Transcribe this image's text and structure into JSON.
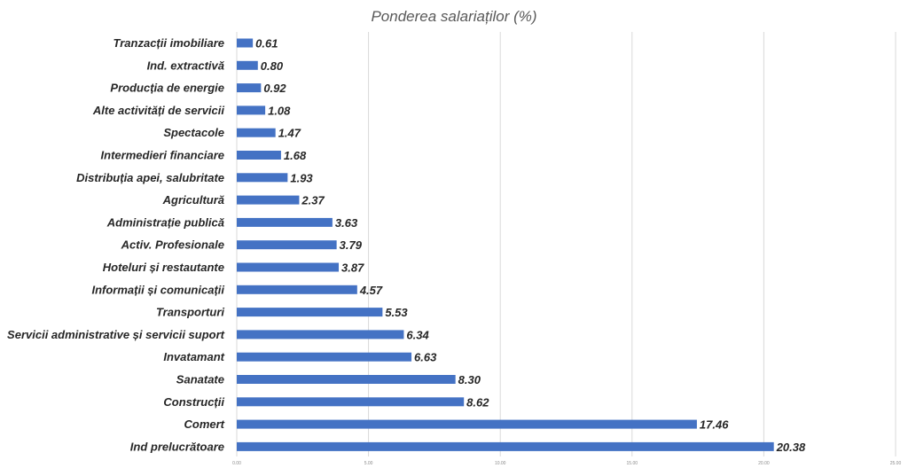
{
  "chart_data": {
    "type": "bar",
    "orientation": "horizontal",
    "title": "Ponderea salariaților (%)",
    "xlabel": "",
    "ylabel": "",
    "categories": [
      "Tranzacții imobiliare",
      "Ind. extractivă",
      "Producția de energie",
      "Alte activități de servicii",
      "Spectacole",
      "Intermedieri financiare",
      "Distribuția apei, salubritate",
      "Agricultură",
      "Administrație publică",
      "Activ. Profesionale",
      "Hoteluri și restautante",
      "Informații și comunicații",
      "Transporturi",
      "Servicii administrative și servicii suport",
      "Invatamant",
      "Sanatate",
      "Construcții",
      "Comert",
      "Ind prelucrătoare"
    ],
    "values": [
      0.61,
      0.8,
      0.92,
      1.08,
      1.47,
      1.68,
      1.93,
      2.37,
      3.63,
      3.79,
      3.87,
      4.57,
      5.53,
      6.34,
      6.63,
      8.3,
      8.62,
      17.46,
      20.38
    ],
    "value_labels": [
      "0.61",
      "0.80",
      "0.92",
      "1.08",
      "1.47",
      "1.68",
      "1.93",
      "2.37",
      "3.63",
      "3.79",
      "3.87",
      "4.57",
      "5.53",
      "6.34",
      "6.63",
      "8.30",
      "8.62",
      "17.46",
      "20.38"
    ],
    "xlim": [
      0,
      25
    ],
    "x_ticks": [
      0,
      5,
      10,
      15,
      20,
      25
    ],
    "x_tick_labels": [
      "0.00",
      "5.00",
      "10.00",
      "15.00",
      "20.00",
      "25.00"
    ],
    "grid": true,
    "legend": "none",
    "bar_color": "#4472c4"
  }
}
